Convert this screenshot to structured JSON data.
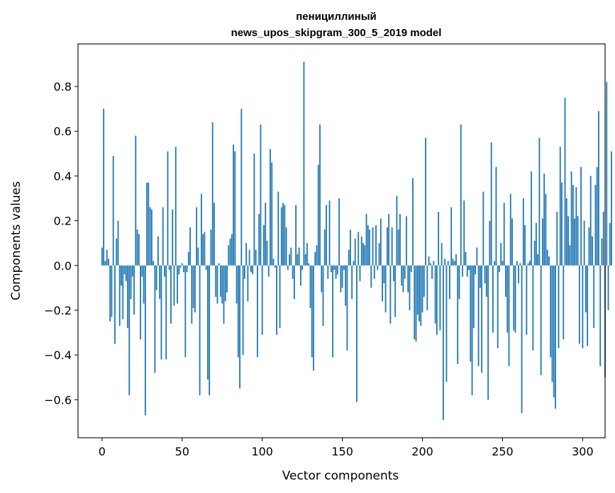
{
  "chart_data": {
    "type": "bar",
    "title_line1": "пенициллиный",
    "title_line2": "news_upos_skipgram_300_5_2019 model",
    "xlabel": "Vector components",
    "ylabel": "Components values",
    "xlim": [
      -15,
      314
    ],
    "ylim": [
      -0.77,
      0.99
    ],
    "xticks": [
      0,
      50,
      100,
      150,
      200,
      250,
      300
    ],
    "xtick_labels": [
      "0",
      "50",
      "100",
      "150",
      "200",
      "250",
      "300"
    ],
    "yticks": [
      -0.6,
      -0.4,
      -0.2,
      0.0,
      0.2,
      0.4,
      0.6,
      0.8
    ],
    "ytick_labels": [
      "−0.6",
      "−0.4",
      "−0.2",
      "0.0",
      "0.2",
      "0.4",
      "0.6",
      "0.8"
    ],
    "color": "#1f77b4",
    "grid": false,
    "values": [
      0.08,
      0.7,
      0.02,
      0.07,
      0.03,
      -0.25,
      -0.23,
      0.49,
      -0.35,
      0.12,
      0.2,
      -0.27,
      -0.09,
      -0.24,
      -0.04,
      -0.07,
      -0.28,
      -0.58,
      -0.15,
      -0.05,
      -0.22,
      0.58,
      0.16,
      0.14,
      -0.33,
      -0.05,
      -0.17,
      -0.67,
      0.37,
      0.37,
      0.26,
      0.25,
      0.02,
      -0.48,
      -0.11,
      0.13,
      -0.15,
      -0.42,
      0.26,
      -0.05,
      -0.42,
      0.51,
      -0.02,
      -0.26,
      0.25,
      -0.18,
      0.53,
      -0.17,
      -0.04,
      -0.01,
      0.01,
      -0.03,
      -0.41,
      -0.03,
      0.06,
      0.17,
      -0.26,
      -0.19,
      -0.21,
      0.26,
      0.08,
      -0.58,
      0.32,
      0.14,
      0.15,
      -0.02,
      -0.51,
      -0.58,
      0.16,
      0.64,
      0.28,
      -0.14,
      -0.17,
      0.01,
      -0.14,
      -0.17,
      -0.26,
      -0.16,
      -0.12,
      0.09,
      0.12,
      0.14,
      0.54,
      0.51,
      -0.17,
      -0.41,
      -0.55,
      0.7,
      -0.4,
      -0.06,
      0.1,
      -0.16,
      0.07,
      -0.03,
      -0.04,
      0.5,
      0.07,
      -0.41,
      0.23,
      0.63,
      -0.31,
      0.18,
      0.28,
      0.11,
      -0.05,
      0.52,
      0.46,
      0.03,
      -0.01,
      -0.31,
      0.33,
      -0.28,
      0.26,
      0.28,
      0.27,
      0.17,
      -0.02,
      0.05,
      0.08,
      -0.06,
      -0.15,
      0.27,
      0.05,
      0.08,
      -0.09,
      -0.02,
      0.91,
      0.05,
      0.1,
      0.01,
      -0.19,
      -0.41,
      -0.47,
      0.06,
      0.09,
      0.45,
      0.63,
      -0.12,
      -0.27,
      0.16,
      0.27,
      -0.06,
      0.29,
      -0.03,
      -0.41,
      -0.02,
      -0.06,
      -0.04,
      0.3,
      -0.12,
      -0.1,
      -0.02,
      -0.18,
      -0.38,
      0.07,
      0.16,
      -0.15,
      0.02,
      0.12,
      -0.61,
      0.15,
      -0.07,
      0.13,
      0.1,
      0.09,
      0.23,
      0.18,
      0.16,
      -0.1,
      0.17,
      -0.06,
      0.18,
      -0.02,
      0.1,
      0.21,
      -0.16,
      -0.08,
      -0.21,
      0.17,
      0.23,
      -0.26,
      0.17,
      -0.07,
      -0.23,
      0.31,
      0.16,
      0.23,
      -0.09,
      -0.12,
      -0.06,
      0.22,
      -0.12,
      -0.2,
      -0.03,
      0.39,
      -0.33,
      -0.34,
      -0.22,
      -0.25,
      -0.27,
      -0.21,
      -0.14,
      0.57,
      -0.2,
      0.04,
      0.01,
      -0.06,
      0.02,
      -0.26,
      -0.31,
      0.24,
      -0.29,
      0.1,
      -0.69,
      0.03,
      -0.52,
      0.02,
      -0.15,
      0.26,
      0.03,
      0.02,
      0.05,
      -0.44,
      -0.15,
      0.63,
      -0.05,
      0.29,
      0.06,
      -0.05,
      -0.02,
      -0.43,
      -0.58,
      -0.28,
      -0.04,
      0.08,
      -0.45,
      -0.1,
      -0.48,
      0.33,
      -0.08,
      -0.14,
      -0.6,
      0.2,
      0.55,
      -0.3,
      0.02,
      0.44,
      -0.37,
      -0.03,
      0.1,
      0.02,
      0.28,
      -0.14,
      -0.3,
      -0.45,
      0.32,
      0.21,
      -0.29,
      -0.3,
      0.02,
      -0.08,
      0.01,
      -0.66,
      0.3,
      0.18,
      -0.31,
      0.01,
      0.02,
      0.42,
      -0.38,
      0.11,
      0.19,
      0.05,
      0.57,
      -0.49,
      0.21,
      0.41,
      0.32,
      0.07,
      0.04,
      -0.41,
      -0.52,
      -0.59,
      -0.64,
      0.24,
      -0.37,
      0.53,
      0.37,
      -0.33,
      0.75,
      0.3,
      0.22,
      0.09,
      0.42,
      0.36,
      0.21,
      0.35,
      0.22,
      -0.35,
      0.44,
      -0.37,
      0.2,
      -0.21,
      -0.36,
      0.17,
      0.4,
      0.13,
      -0.28,
      0.36,
      0.44,
      0.69,
      -0.45,
      0.12,
      0.24,
      -0.5,
      0.82,
      -0.2,
      0.19,
      0.51
    ]
  }
}
